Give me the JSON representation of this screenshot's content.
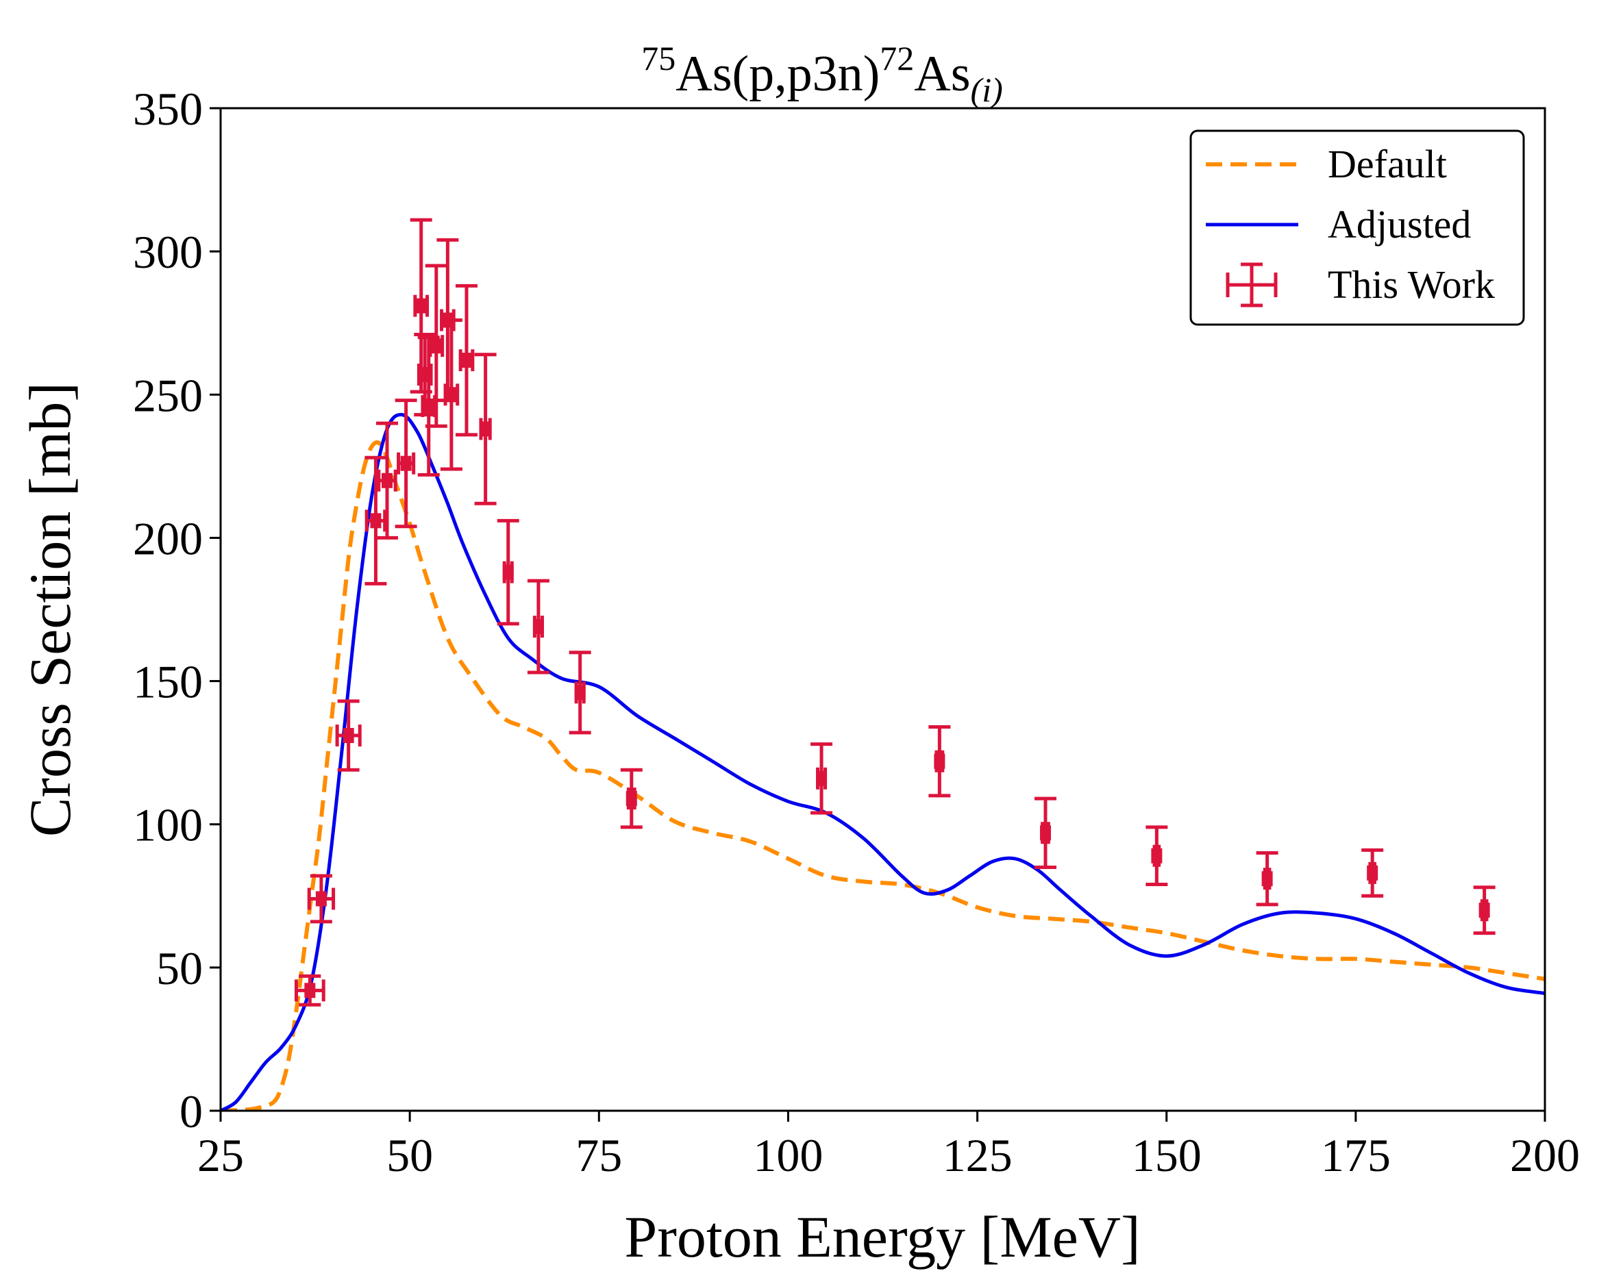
{
  "chart_data": {
    "type": "line",
    "title": {
      "mass_in": "75",
      "target": "As",
      "reaction": "(p,p3n)",
      "mass_out": "72",
      "product": "As",
      "subscript": "(i)"
    },
    "title_text": "75As(p,p3n)72As(i)",
    "xlabel": "Proton Energy [MeV]",
    "ylabel": "Cross Section [mb]",
    "xlim": [
      25,
      200
    ],
    "ylim": [
      0,
      350
    ],
    "xticks": [
      25,
      50,
      75,
      100,
      125,
      150,
      175,
      200
    ],
    "yticks": [
      0,
      50,
      100,
      150,
      200,
      250,
      300,
      350
    ],
    "legend_position": "top-right",
    "series": [
      {
        "name": "Default",
        "style": "dashed",
        "color": "#ff8c00",
        "x": [
          25,
          28,
          30,
          32,
          33,
          34,
          35,
          36,
          37,
          38,
          39,
          40,
          41,
          42,
          43,
          44,
          45,
          46,
          47,
          48,
          50,
          52,
          55,
          58,
          62,
          65,
          68,
          70,
          72,
          75,
          80,
          85,
          90,
          95,
          100,
          105,
          110,
          115,
          120,
          125,
          130,
          135,
          140,
          145,
          150,
          155,
          160,
          165,
          170,
          175,
          180,
          185,
          190,
          195,
          200
        ],
        "y": [
          0,
          0.3,
          1,
          3,
          8,
          18,
          35,
          55,
          75,
          95,
          120,
          145,
          170,
          195,
          212,
          225,
          232,
          233,
          228,
          220,
          205,
          188,
          165,
          152,
          138,
          134,
          130,
          124,
          119,
          118,
          110,
          101,
          97,
          94,
          88,
          82,
          80,
          79,
          76,
          71,
          68,
          67,
          66,
          64,
          62,
          59,
          56,
          54,
          53,
          53,
          52,
          51,
          50,
          48,
          46
        ]
      },
      {
        "name": "Adjusted",
        "style": "solid",
        "color": "#0000ee",
        "x": [
          25,
          27,
          29,
          31,
          33,
          35,
          37,
          39,
          41,
          43,
          45,
          47,
          49,
          51,
          53,
          55,
          57,
          60,
          63,
          66,
          70,
          75,
          80,
          85,
          90,
          95,
          100,
          105,
          110,
          115,
          118,
          121,
          124,
          127,
          130,
          133,
          136,
          140,
          145,
          150,
          155,
          160,
          165,
          170,
          175,
          180,
          185,
          190,
          195,
          200
        ],
        "y": [
          0,
          3,
          10,
          17,
          22,
          30,
          45,
          78,
          125,
          175,
          215,
          238,
          243,
          237,
          225,
          212,
          198,
          180,
          165,
          158,
          151,
          148,
          138,
          130,
          122,
          114,
          108,
          104,
          95,
          82,
          76,
          77,
          82,
          87,
          88,
          84,
          77,
          68,
          58,
          54,
          58,
          65,
          69,
          69,
          67,
          62,
          55,
          48,
          43,
          41
        ]
      }
    ],
    "points": {
      "name": "This Work",
      "color": "#dc143c",
      "data": [
        {
          "x": 36.8,
          "y": 42,
          "xerr": 1.8,
          "yerr": 5
        },
        {
          "x": 38.3,
          "y": 74,
          "xerr": 1.6,
          "yerr": 8
        },
        {
          "x": 41.9,
          "y": 131,
          "xerr": 1.5,
          "yerr": 12
        },
        {
          "x": 45.5,
          "y": 206,
          "xerr": 1.2,
          "yerr": 22
        },
        {
          "x": 47.0,
          "y": 220,
          "xerr": 1.1,
          "yerr": 20
        },
        {
          "x": 49.5,
          "y": 226,
          "xerr": 1.0,
          "yerr": 22
        },
        {
          "x": 51.5,
          "y": 281,
          "xerr": 0.8,
          "yerr": 30
        },
        {
          "x": 52.0,
          "y": 257,
          "xerr": 0.8,
          "yerr": 14
        },
        {
          "x": 52.5,
          "y": 246,
          "xerr": 0.8,
          "yerr": 24
        },
        {
          "x": 53.5,
          "y": 267,
          "xerr": 0.8,
          "yerr": 28
        },
        {
          "x": 55.0,
          "y": 276,
          "xerr": 0.8,
          "yerr": 28
        },
        {
          "x": 55.5,
          "y": 250,
          "xerr": 0.8,
          "yerr": 26
        },
        {
          "x": 57.5,
          "y": 262,
          "xerr": 0.8,
          "yerr": 26
        },
        {
          "x": 60.0,
          "y": 238,
          "xerr": 0.6,
          "yerr": 26
        },
        {
          "x": 63.0,
          "y": 188,
          "xerr": 0.5,
          "yerr": 18
        },
        {
          "x": 67.0,
          "y": 169,
          "xerr": 0.5,
          "yerr": 16
        },
        {
          "x": 72.5,
          "y": 146,
          "xerr": 0.5,
          "yerr": 14
        },
        {
          "x": 79.3,
          "y": 109,
          "xerr": 0.4,
          "yerr": 10
        },
        {
          "x": 104.4,
          "y": 116,
          "xerr": 0.5,
          "yerr": 12
        },
        {
          "x": 120.0,
          "y": 122,
          "xerr": 0.4,
          "yerr": 12
        },
        {
          "x": 134.0,
          "y": 97,
          "xerr": 0.4,
          "yerr": 12
        },
        {
          "x": 148.7,
          "y": 89,
          "xerr": 0.3,
          "yerr": 10
        },
        {
          "x": 163.3,
          "y": 81,
          "xerr": 0.3,
          "yerr": 9
        },
        {
          "x": 177.2,
          "y": 83,
          "xerr": 0.3,
          "yerr": 8
        },
        {
          "x": 192.0,
          "y": 70,
          "xerr": 0.3,
          "yerr": 8
        }
      ]
    }
  }
}
